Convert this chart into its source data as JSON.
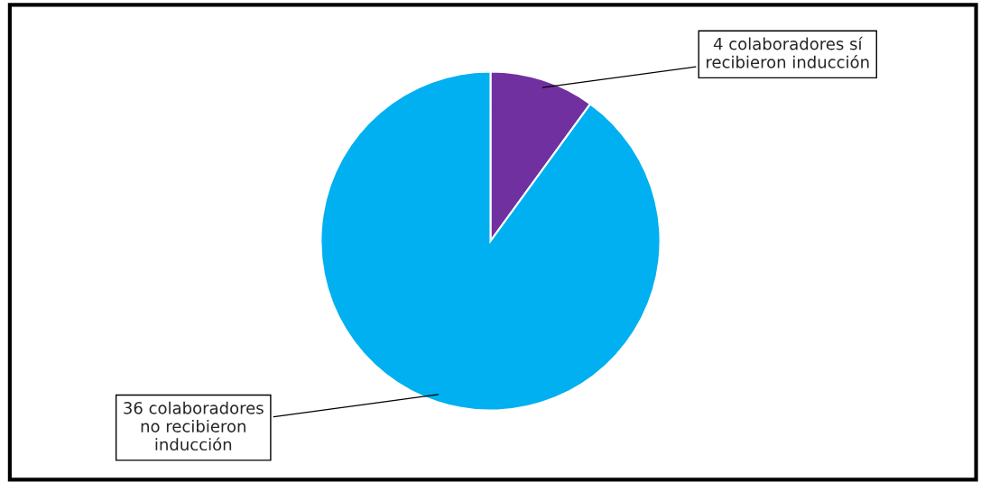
{
  "chart_data": {
    "type": "pie",
    "categories": [
      "4 colaboradores sí\nrecibieron inducción",
      "36 colaboradores\nno recibieron\ninducción"
    ],
    "values": [
      4,
      36
    ],
    "colors": [
      "#7030a0",
      "#00b0f0"
    ],
    "legend": false
  }
}
